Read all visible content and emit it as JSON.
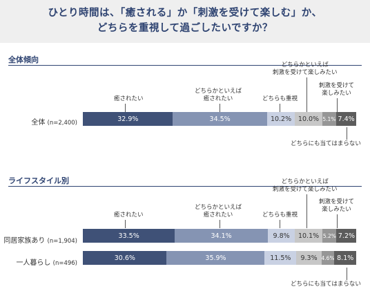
{
  "header": {
    "title_line1": "ひとり時間は、「癒される」か「刺激を受けて楽しむ」か、",
    "title_line2": "どちらを重視して過ごしたいですか？"
  },
  "colors": [
    "#3f5177",
    "#8594b3",
    "#c9d1e3",
    "#c7c7c7",
    "#969696",
    "#5c5c5c"
  ],
  "annotations": {
    "iyasaretai": "癒されたい",
    "dochiraka_iyasaretai_1": "どちらかといえば",
    "dochiraka_iyasaretai_2": "癒されたい",
    "dochiramo": "どちらも重視",
    "dochiraka_shigeki_1": "どちらかといえば",
    "dochiraka_shigeki_2": "刺激を受けて楽しみたい",
    "shigeki_1": "刺激を受けて",
    "shigeki_2": "楽しみたい",
    "dochiranimo": "どちらにも当てはまらない"
  },
  "chart_data": [
    {
      "type": "bar",
      "section_title": "全体傾向",
      "categories": [
        "癒されたい",
        "どちらかといえば癒されたい",
        "どちらも重視",
        "どちらかといえば刺激を受けて楽しみたい",
        "刺激を受けて楽しみたい",
        "どちらにも当てはまらない"
      ],
      "rows": [
        {
          "label": "全体",
          "n": "(n=2,400)",
          "values": [
            32.9,
            34.5,
            10.2,
            10.0,
            5.1,
            7.4
          ],
          "value_labels": [
            "32.9%",
            "34.5%",
            "10.2%",
            "10.0%",
            "5.1%",
            "7.4%"
          ]
        }
      ]
    },
    {
      "type": "bar",
      "section_title": "ライフスタイル別",
      "categories": [
        "癒されたい",
        "どちらかといえば癒されたい",
        "どちらも重視",
        "どちらかといえば刺激を受けて楽しみたい",
        "刺激を受けて楽しみたい",
        "どちらにも当てはまらない"
      ],
      "rows": [
        {
          "label": "同居家族あり",
          "n": "(n=1,904)",
          "values": [
            33.5,
            34.1,
            9.8,
            10.1,
            5.2,
            7.2
          ],
          "value_labels": [
            "33.5%",
            "34.1%",
            "9.8%",
            "10.1%",
            "5.2%",
            "7.2%"
          ]
        },
        {
          "label": "一人暮らし",
          "n": "(n=496)",
          "values": [
            30.6,
            35.9,
            11.5,
            9.3,
            4.6,
            8.1
          ],
          "value_labels": [
            "30.6%",
            "35.9%",
            "11.5%",
            "9.3%",
            "4.6%",
            "8.1%"
          ]
        }
      ]
    }
  ]
}
